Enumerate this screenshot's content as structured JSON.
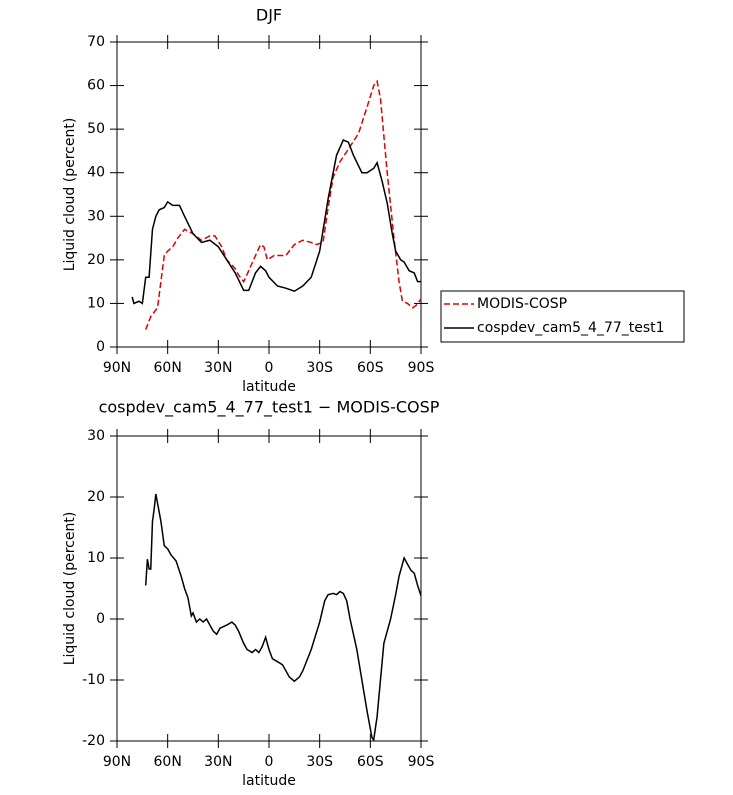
{
  "chart_data": [
    {
      "type": "line",
      "title": "DJF",
      "xlabel": "latitude",
      "ylabel": "Liquid cloud (percent)",
      "xlim": [
        90,
        -90
      ],
      "xticks": [
        {
          "value": 90,
          "label": "90N"
        },
        {
          "value": 60,
          "label": "60N"
        },
        {
          "value": 30,
          "label": "30N"
        },
        0,
        {
          "value": -30,
          "label": "30S"
        },
        {
          "value": -60,
          "label": "60S"
        },
        {
          "value": -90,
          "label": "90S"
        }
      ],
      "ylim": [
        0,
        70
      ],
      "yticks": [
        0,
        10,
        20,
        30,
        40,
        50,
        60,
        70
      ],
      "legend": "right",
      "series": [
        {
          "name": "MODIS-COSP",
          "color": "#e00000",
          "linestyle": "dashed",
          "x": [
            73,
            70,
            68,
            66,
            64,
            62,
            60,
            57,
            54,
            50,
            45,
            40,
            35,
            32,
            28,
            25,
            20,
            18,
            15,
            12,
            8,
            5,
            3,
            1,
            -3,
            -10,
            -15,
            -20,
            -25,
            -28,
            -32,
            -35,
            -38,
            -42,
            -48,
            -53,
            -58,
            -62,
            -64,
            -66,
            -70,
            -74,
            -77,
            -79,
            -82,
            -85,
            -87,
            -90
          ],
          "values": [
            4,
            7,
            8,
            9,
            15,
            21,
            22,
            23,
            25,
            27,
            26,
            24.5,
            25.5,
            25.5,
            23,
            20,
            18,
            16.5,
            15,
            17.5,
            21,
            23.5,
            23,
            20,
            21,
            21,
            23.5,
            24.5,
            24,
            23.5,
            24,
            32,
            39,
            42.5,
            46,
            49,
            55,
            60,
            61,
            57,
            40,
            25,
            15,
            10.5,
            10,
            9,
            9.5,
            11
          ]
        },
        {
          "name": "cospdev_cam5_4_77_test1",
          "color": "#000000",
          "linestyle": "solid",
          "x": [
            81,
            80,
            77,
            75,
            73,
            71,
            69,
            67,
            65,
            62,
            60,
            57,
            53,
            50,
            45,
            40,
            35,
            30,
            25,
            20,
            15,
            12,
            8,
            5,
            2,
            0,
            -5,
            -10,
            -15,
            -20,
            -25,
            -30,
            -35,
            -40,
            -44,
            -47,
            -50,
            -55,
            -58,
            -62,
            -64,
            -67,
            -70,
            -73,
            -75,
            -78,
            -80,
            -83,
            -86,
            -88,
            -90
          ],
          "values": [
            11.5,
            10,
            10.5,
            10,
            16,
            16,
            27,
            30,
            31.5,
            32,
            33.3,
            32.5,
            32.5,
            30,
            26,
            24,
            24.5,
            23,
            20,
            17,
            13,
            13,
            17,
            18.5,
            17.5,
            16,
            14,
            13.5,
            12.8,
            14,
            16,
            22,
            34,
            44,
            47.5,
            47,
            44,
            40,
            40,
            41,
            42.3,
            38,
            33,
            26,
            22,
            20,
            19.5,
            17.5,
            17,
            15,
            15
          ]
        }
      ]
    },
    {
      "type": "line",
      "title": "cospdev_cam5_4_77_test1 − MODIS-COSP",
      "xlabel": "latitude",
      "ylabel": "Liquid cloud (percent)",
      "xlim": [
        90,
        -90
      ],
      "xticks": [
        {
          "value": 90,
          "label": "90N"
        },
        {
          "value": 60,
          "label": "60N"
        },
        {
          "value": 30,
          "label": "30N"
        },
        0,
        {
          "value": -30,
          "label": "30S"
        },
        {
          "value": -60,
          "label": "60S"
        },
        {
          "value": -90,
          "label": "90S"
        }
      ],
      "ylim": [
        -20,
        30
      ],
      "yticks": [
        -20,
        -10,
        0,
        10,
        20,
        30
      ],
      "series": [
        {
          "color": "#000000",
          "linestyle": "solid",
          "x": [
            73,
            72,
            71,
            70,
            69,
            68,
            67,
            66,
            64,
            62,
            60,
            58,
            55,
            52,
            50,
            48,
            46,
            45,
            43,
            41,
            39,
            37,
            35,
            33,
            31,
            29,
            25,
            22,
            20,
            18,
            15,
            13,
            10,
            8,
            6,
            4,
            2,
            0,
            -2,
            -5,
            -8,
            -12,
            -15,
            -18,
            -20,
            -25,
            -30,
            -33,
            -35,
            -38,
            -40,
            -42,
            -44,
            -46,
            -48,
            -52,
            -55,
            -58,
            -61,
            -62,
            -64,
            -66,
            -68,
            -70,
            -72,
            -75,
            -77,
            -79,
            -80,
            -82,
            -84,
            -86,
            -88,
            -90
          ],
          "values": [
            5.5,
            9.8,
            8.2,
            8.2,
            16,
            18,
            20.5,
            19,
            16,
            12,
            11.5,
            10.5,
            9.5,
            7,
            5,
            3.5,
            0.5,
            1,
            -0.5,
            0,
            -0.5,
            0,
            -1,
            -2,
            -2.5,
            -1.5,
            -1,
            -0.5,
            -1,
            -2,
            -4,
            -5,
            -5.5,
            -5,
            -5.5,
            -4.5,
            -3,
            -5,
            -6.5,
            -7,
            -7.5,
            -9.5,
            -10.2,
            -9.5,
            -8.5,
            -5,
            -0.5,
            3,
            4,
            4.2,
            4,
            4.5,
            4.2,
            3,
            0,
            -5,
            -10,
            -15,
            -19.5,
            -19.8,
            -16,
            -10,
            -4,
            -2,
            0,
            4,
            7,
            9,
            10,
            9,
            8,
            7.5,
            5.5,
            3.8
          ]
        }
      ]
    }
  ]
}
